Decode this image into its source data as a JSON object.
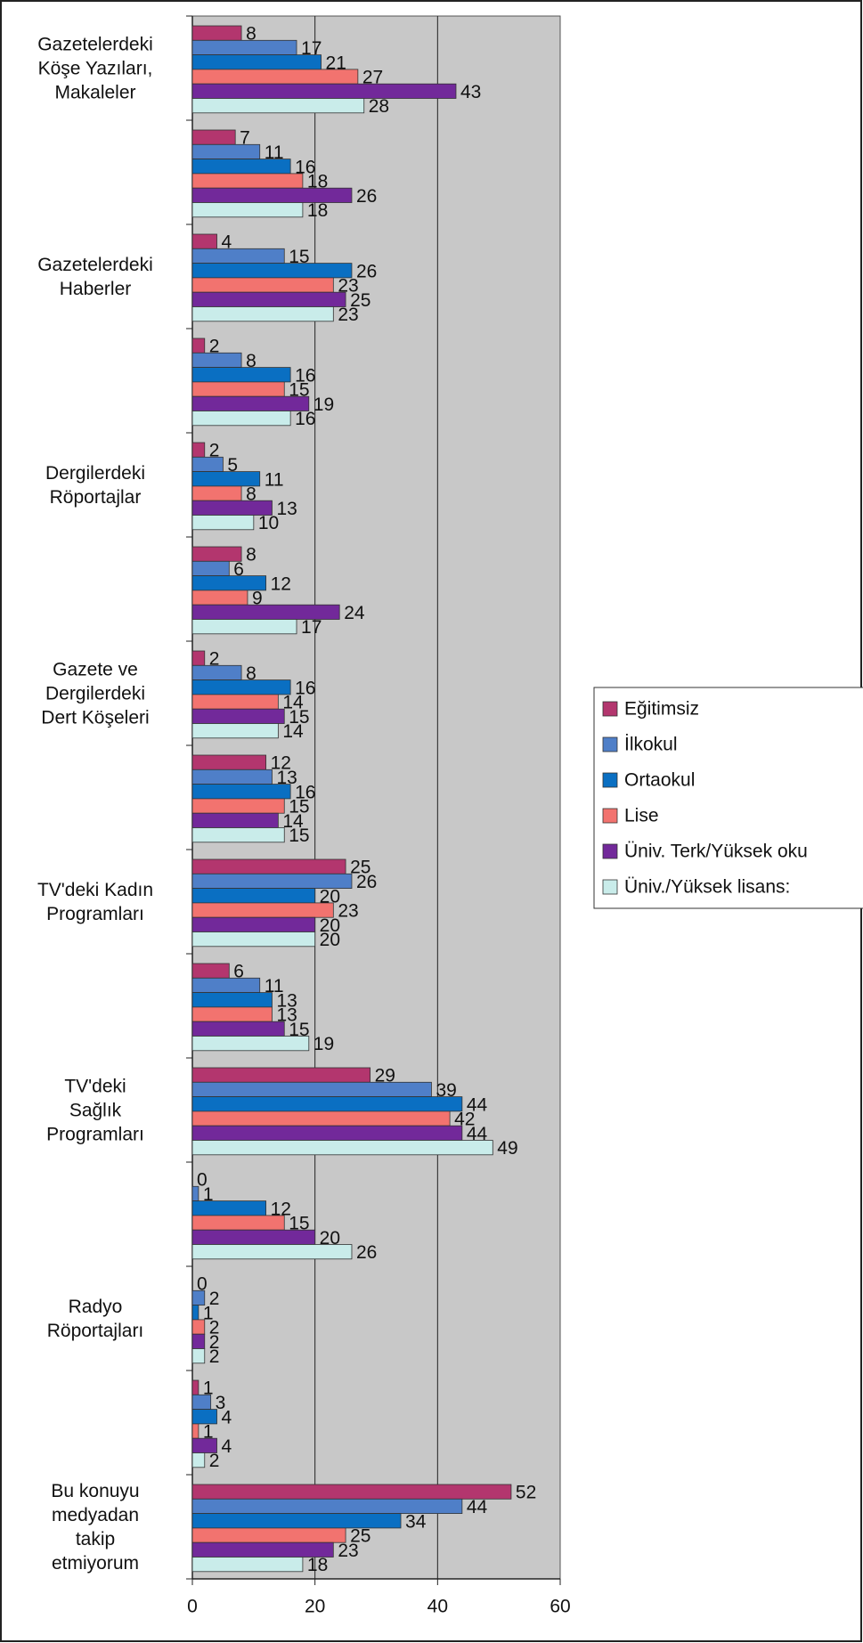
{
  "chart_data": {
    "type": "bar",
    "orientation": "horizontal",
    "categories": [
      "Gazetelerdeki\nKöşe Yazıları,\nMakaleler",
      null,
      "Gazetelerdeki\nHaberler",
      null,
      "Dergilerdeki\nRöportajlar",
      null,
      "Gazete ve\nDergilerdeki\nDert Köşeleri",
      null,
      "TV'deki Kadın\nProgramları",
      null,
      "TV'deki\nSağlık\nProgramları",
      null,
      "Radyo\nRöportajları",
      null,
      "Bu konuyu\nmedyadan\ntakip\netmiyorum"
    ],
    "series": [
      {
        "name": "Eğitimsiz",
        "color": "#b3366e",
        "values": [
          8,
          7,
          4,
          2,
          2,
          8,
          2,
          12,
          25,
          6,
          29,
          0,
          0,
          1,
          52
        ]
      },
      {
        "name": "İlkokul",
        "color": "#4f7fc8",
        "values": [
          17,
          11,
          15,
          8,
          5,
          6,
          8,
          13,
          26,
          11,
          39,
          1,
          2,
          3,
          44
        ]
      },
      {
        "name": "Ortaokul",
        "color": "#0a6fc2",
        "values": [
          21,
          16,
          26,
          16,
          11,
          12,
          16,
          16,
          20,
          13,
          44,
          12,
          1,
          4,
          34
        ]
      },
      {
        "name": "Lise",
        "color": "#f2736f",
        "values": [
          27,
          18,
          23,
          15,
          8,
          9,
          14,
          15,
          23,
          13,
          42,
          15,
          2,
          1,
          25
        ]
      },
      {
        "name": "Üniv. Terk/Yüksek oku",
        "color": "#72299a",
        "values": [
          43,
          26,
          25,
          19,
          13,
          24,
          15,
          14,
          20,
          15,
          44,
          20,
          2,
          4,
          23
        ]
      },
      {
        "name": "Üniv./Yüksek lisans:",
        "color": "#c9ecea",
        "values": [
          28,
          18,
          23,
          16,
          10,
          17,
          14,
          15,
          20,
          19,
          49,
          26,
          2,
          2,
          18
        ]
      }
    ],
    "xlim": [
      0,
      60
    ],
    "xticks": [
      0,
      20,
      40,
      60
    ],
    "grid": true,
    "legend": "right"
  }
}
